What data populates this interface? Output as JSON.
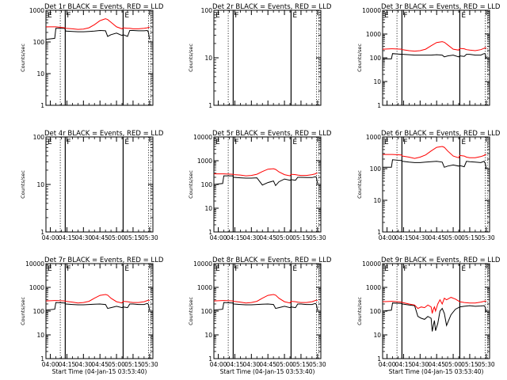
{
  "colors": {
    "events": "#000000",
    "lld": "#ff0000",
    "axis": "#000000",
    "background": "#ffffff"
  },
  "shared": {
    "x_ticks": [
      "04:00",
      "04:15",
      "04:30",
      "04:45",
      "05:00",
      "05:15",
      "05:30"
    ],
    "x_tick_values": [
      0,
      15,
      30,
      45,
      60,
      75,
      90
    ],
    "xlim": [
      -4,
      93
    ],
    "xlabel": "Start Time (04-Jan-15 03:53:40)",
    "ylabel": "Counts/sec",
    "y_scale": "log",
    "flag_labels": {
      "f": "F",
      "e": "E"
    },
    "markers": [
      {
        "kind": "solid",
        "x": 13.5,
        "flag": "f"
      },
      {
        "kind": "solid",
        "x": 66,
        "flag": "e"
      },
      {
        "kind": "dotted",
        "x": 9
      },
      {
        "kind": "dotted",
        "x": 89
      },
      {
        "kind": "dotted",
        "x": 91
      }
    ]
  },
  "chart_data": [
    {
      "type": "line",
      "title": "Det 1r BLACK = Events, RED = LLD",
      "ylim": [
        1,
        1000
      ],
      "yticks": [
        "1",
        "10",
        "100",
        "1000"
      ],
      "ytick_values": [
        1,
        10,
        100,
        1000
      ],
      "x_ticks_shown": false,
      "x_axis_label_shown": false,
      "x": [
        -4,
        4,
        5,
        13,
        14,
        20,
        25,
        30,
        35,
        40,
        45,
        50,
        52,
        55,
        60,
        65,
        66,
        70,
        72,
        75,
        80,
        85,
        88,
        89,
        90
      ],
      "series": [
        {
          "name": "BLACK = Events",
          "values": [
            120,
            130,
            270,
            270,
            220,
            215,
            210,
            210,
            215,
            220,
            230,
            225,
            150,
            170,
            190,
            160,
            170,
            150,
            230,
            230,
            225,
            225,
            230,
            200,
            120
          ]
        },
        {
          "name": "RED = LLD",
          "values": [
            300,
            300,
            300,
            280,
            270,
            260,
            250,
            255,
            280,
            350,
            470,
            540,
            510,
            420,
            300,
            260,
            280,
            270,
            270,
            260,
            260,
            270,
            280,
            290,
            290
          ]
        }
      ]
    },
    {
      "type": "line",
      "title": "Det 2r BLACK = Events, RED = LLD",
      "ylim": [
        1,
        100
      ],
      "yticks": [
        "1",
        "10",
        "100"
      ],
      "ytick_values": [
        1,
        10,
        100
      ],
      "x_ticks_shown": false,
      "x_axis_label_shown": false,
      "x": [],
      "series": []
    },
    {
      "type": "line",
      "title": "Det 3r BLACK = Events, RED = LLD",
      "ylim": [
        1,
        10000
      ],
      "yticks": [
        "1",
        "10",
        "100",
        "1000",
        "10000"
      ],
      "ytick_values": [
        1,
        10,
        100,
        1000,
        10000
      ],
      "x_ticks_shown": false,
      "x_axis_label_shown": false,
      "x": [
        -4,
        4,
        5,
        13,
        14,
        20,
        25,
        30,
        35,
        40,
        45,
        50,
        52,
        55,
        60,
        65,
        66,
        70,
        72,
        75,
        80,
        85,
        88,
        89,
        90
      ],
      "series": [
        {
          "name": "BLACK = Events",
          "values": [
            90,
            90,
            150,
            140,
            140,
            135,
            130,
            130,
            130,
            130,
            135,
            130,
            110,
            120,
            130,
            110,
            120,
            115,
            140,
            140,
            130,
            130,
            150,
            150,
            90
          ]
        },
        {
          "name": "RED = LLD",
          "values": [
            230,
            240,
            240,
            230,
            220,
            200,
            190,
            200,
            230,
            320,
            440,
            480,
            450,
            350,
            230,
            210,
            250,
            240,
            220,
            210,
            200,
            220,
            250,
            270,
            250
          ]
        }
      ]
    },
    {
      "type": "line",
      "title": "Det 4r BLACK = Events, RED = LLD",
      "ylim": [
        1,
        100
      ],
      "yticks": [
        "1",
        "10",
        "100"
      ],
      "ytick_values": [
        1,
        10,
        100
      ],
      "x_ticks_shown": true,
      "x_axis_label_shown": false,
      "x": [],
      "series": []
    },
    {
      "type": "line",
      "title": "Det 5r BLACK = Events, RED = LLD",
      "ylim": [
        1,
        10000
      ],
      "yticks": [
        "1",
        "10",
        "100",
        "1000",
        "10000"
      ],
      "ytick_values": [
        1,
        10,
        100,
        1000,
        10000
      ],
      "x_ticks_shown": true,
      "x_axis_label_shown": false,
      "x": [
        -4,
        4,
        5,
        13,
        14,
        20,
        25,
        30,
        35,
        40,
        45,
        50,
        52,
        55,
        60,
        65,
        66,
        70,
        72,
        75,
        80,
        85,
        88,
        89,
        90
      ],
      "series": [
        {
          "name": "BLACK = Events",
          "values": [
            100,
            110,
            230,
            230,
            200,
            190,
            185,
            185,
            190,
            95,
            120,
            140,
            90,
            130,
            170,
            150,
            160,
            150,
            200,
            200,
            195,
            195,
            210,
            200,
            110
          ]
        },
        {
          "name": "RED = LLD",
          "values": [
            280,
            280,
            280,
            270,
            260,
            250,
            230,
            240,
            270,
            350,
            440,
            460,
            430,
            340,
            260,
            230,
            270,
            260,
            250,
            240,
            240,
            260,
            280,
            300,
            300
          ]
        }
      ]
    },
    {
      "type": "line",
      "title": "Det 6r BLACK = Events, RED = LLD",
      "ylim": [
        1,
        1000
      ],
      "yticks": [
        "1",
        "10",
        "100",
        "1000"
      ],
      "ytick_values": [
        1,
        10,
        100,
        1000
      ],
      "x_ticks_shown": true,
      "x_axis_label_shown": false,
      "x": [
        -4,
        4,
        5,
        13,
        14,
        20,
        25,
        30,
        35,
        40,
        45,
        50,
        52,
        55,
        60,
        65,
        66,
        70,
        72,
        75,
        80,
        85,
        88,
        89,
        90
      ],
      "series": [
        {
          "name": "BLACK = Events",
          "values": [
            110,
            110,
            190,
            180,
            170,
            160,
            155,
            155,
            160,
            165,
            170,
            160,
            110,
            120,
            130,
            120,
            125,
            115,
            170,
            165,
            160,
            155,
            170,
            150,
            100
          ]
        },
        {
          "name": "RED = LLD",
          "values": [
            280,
            280,
            280,
            270,
            250,
            230,
            210,
            230,
            270,
            360,
            470,
            500,
            470,
            360,
            250,
            220,
            260,
            250,
            230,
            220,
            220,
            240,
            260,
            280,
            280
          ]
        }
      ]
    },
    {
      "type": "line",
      "title": "Det 7r BLACK = Events, RED = LLD",
      "ylim": [
        1,
        10000
      ],
      "yticks": [
        "1",
        "10",
        "100",
        "1000",
        "10000"
      ],
      "ytick_values": [
        1,
        10,
        100,
        1000,
        10000
      ],
      "x_ticks_shown": true,
      "x_axis_label_shown": true,
      "x": [
        -4,
        4,
        5,
        13,
        14,
        20,
        25,
        30,
        35,
        40,
        45,
        50,
        52,
        55,
        60,
        65,
        66,
        70,
        72,
        75,
        80,
        85,
        88,
        89,
        90
      ],
      "series": [
        {
          "name": "BLACK = Events",
          "values": [
            110,
            120,
            230,
            220,
            200,
            190,
            185,
            185,
            190,
            195,
            200,
            190,
            130,
            140,
            160,
            140,
            150,
            140,
            200,
            200,
            190,
            190,
            210,
            190,
            110
          ]
        },
        {
          "name": "RED = LLD",
          "values": [
            270,
            280,
            280,
            270,
            260,
            240,
            220,
            230,
            260,
            350,
            460,
            500,
            470,
            350,
            250,
            220,
            260,
            250,
            240,
            230,
            230,
            250,
            280,
            290,
            280
          ]
        }
      ]
    },
    {
      "type": "line",
      "title": "Det 8r BLACK = Events, RED = LLD",
      "ylim": [
        1,
        10000
      ],
      "yticks": [
        "1",
        "10",
        "100",
        "1000",
        "10000"
      ],
      "ytick_values": [
        1,
        10,
        100,
        1000,
        10000
      ],
      "x_ticks_shown": true,
      "x_axis_label_shown": true,
      "x": [
        -4,
        4,
        5,
        13,
        14,
        20,
        25,
        30,
        35,
        40,
        45,
        50,
        52,
        55,
        60,
        65,
        66,
        70,
        72,
        75,
        80,
        85,
        88,
        89,
        90
      ],
      "series": [
        {
          "name": "BLACK = Events",
          "values": [
            110,
            120,
            230,
            220,
            200,
            190,
            185,
            185,
            190,
            195,
            200,
            190,
            130,
            140,
            160,
            140,
            150,
            140,
            200,
            200,
            190,
            190,
            210,
            190,
            110
          ]
        },
        {
          "name": "RED = LLD",
          "values": [
            270,
            280,
            280,
            270,
            260,
            240,
            220,
            230,
            260,
            350,
            460,
            500,
            470,
            350,
            250,
            220,
            260,
            250,
            240,
            230,
            230,
            250,
            280,
            290,
            280
          ]
        }
      ]
    },
    {
      "type": "line",
      "title": "Det 9r BLACK = Events, RED = LLD",
      "ylim": [
        1,
        10000
      ],
      "yticks": [
        "1",
        "10",
        "100",
        "1000",
        "10000"
      ],
      "ytick_values": [
        1,
        10,
        100,
        1000,
        10000
      ],
      "x_ticks_shown": true,
      "x_axis_label_shown": true,
      "x": [
        -4,
        4,
        5,
        13,
        14,
        20,
        25,
        28,
        31,
        34,
        37,
        40,
        41,
        42,
        43,
        44,
        46,
        48,
        50,
        52,
        54,
        58,
        62,
        66,
        70,
        75,
        80,
        85,
        88,
        89,
        90
      ],
      "series": [
        {
          "name": "BLACK = Events",
          "values": [
            100,
            110,
            220,
            210,
            200,
            180,
            170,
            60,
            50,
            45,
            60,
            50,
            14,
            25,
            40,
            15,
            30,
            100,
            130,
            80,
            25,
            70,
            120,
            150,
            160,
            170,
            160,
            165,
            170,
            150,
            90
          ]
        },
        {
          "name": "RED = LLD",
          "values": [
            250,
            260,
            260,
            240,
            230,
            200,
            180,
            130,
            150,
            140,
            180,
            150,
            80,
            120,
            150,
            100,
            200,
            300,
            200,
            350,
            300,
            380,
            320,
            250,
            230,
            220,
            220,
            240,
            260,
            270,
            260
          ]
        }
      ]
    }
  ]
}
